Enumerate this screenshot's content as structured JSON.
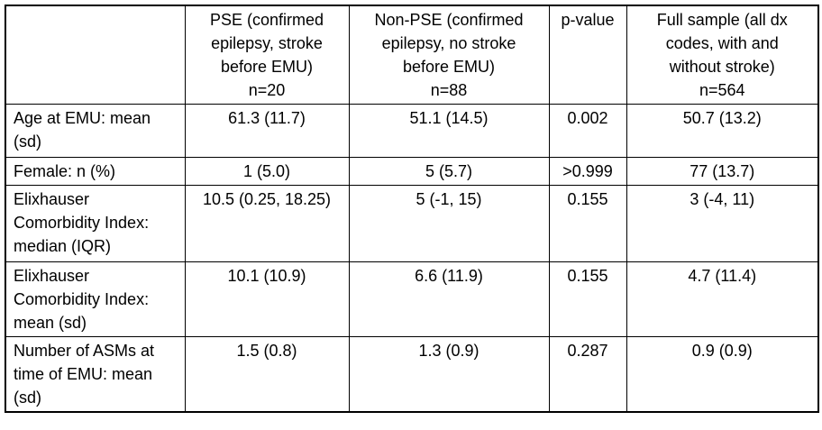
{
  "table": {
    "header": {
      "row_label_col": "",
      "cols": [
        {
          "lines": [
            "PSE (confirmed",
            "epilepsy, stroke",
            "before EMU)",
            "n=20"
          ]
        },
        {
          "lines": [
            "Non-PSE (confirmed",
            "epilepsy, no stroke",
            "before EMU)",
            "n=88"
          ]
        },
        {
          "lines": [
            "p-value"
          ]
        },
        {
          "lines": [
            "Full sample (all dx",
            "codes, with and",
            "without stroke)",
            "n=564"
          ]
        }
      ]
    },
    "rows": [
      {
        "label_lines": [
          "Age at EMU: mean",
          "(sd)"
        ],
        "values": [
          "61.3 (11.7)",
          "51.1 (14.5)",
          "0.002",
          "50.7 (13.2)"
        ]
      },
      {
        "label_lines": [
          "Female: n (%)"
        ],
        "values": [
          "1 (5.0)",
          "5 (5.7)",
          ">0.999",
          "77 (13.7)"
        ]
      },
      {
        "label_lines": [
          "Elixhauser",
          "Comorbidity Index:",
          "median (IQR)"
        ],
        "values": [
          "10.5 (0.25, 18.25)",
          "5 (-1, 15)",
          "0.155",
          "3 (-4, 11)"
        ]
      },
      {
        "label_lines": [
          "Elixhauser",
          "Comorbidity Index:",
          "mean (sd)"
        ],
        "values": [
          "10.1 (10.9)",
          "6.6 (11.9)",
          "0.155",
          "4.7 (11.4)"
        ]
      },
      {
        "label_lines": [
          "Number of ASMs at",
          "time of EMU: mean",
          "(sd)"
        ],
        "values": [
          "1.5 (0.8)",
          "1.3 (0.9)",
          "0.287",
          "0.9 (0.9)"
        ]
      }
    ],
    "colors": {
      "border": "#000000",
      "text": "#000000",
      "background": "#ffffff"
    }
  }
}
